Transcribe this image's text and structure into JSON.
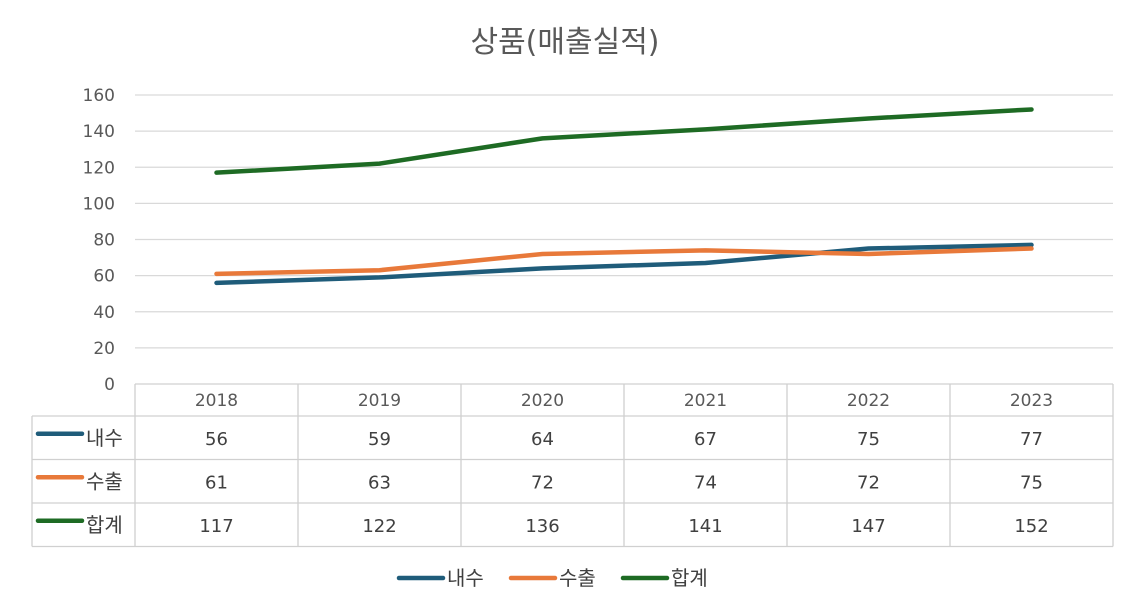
{
  "chart_data": {
    "type": "line",
    "title": "상품(매출실적)",
    "categories": [
      "2018",
      "2019",
      "2020",
      "2021",
      "2022",
      "2023"
    ],
    "y_ticks": [
      "0",
      "20",
      "40",
      "60",
      "80",
      "100",
      "120",
      "140",
      "160"
    ],
    "ylim": [
      0,
      160
    ],
    "grid": true,
    "legend_position": "bottom",
    "data_table": true,
    "series": [
      {
        "name": "내수",
        "color": "#1f5c7a",
        "values": [
          56,
          59,
          64,
          67,
          75,
          77
        ]
      },
      {
        "name": "수출",
        "color": "#e8793a",
        "values": [
          61,
          63,
          72,
          74,
          72,
          75
        ]
      },
      {
        "name": "합계",
        "color": "#1e6b24",
        "values": [
          117,
          122,
          136,
          141,
          147,
          152
        ]
      }
    ]
  }
}
